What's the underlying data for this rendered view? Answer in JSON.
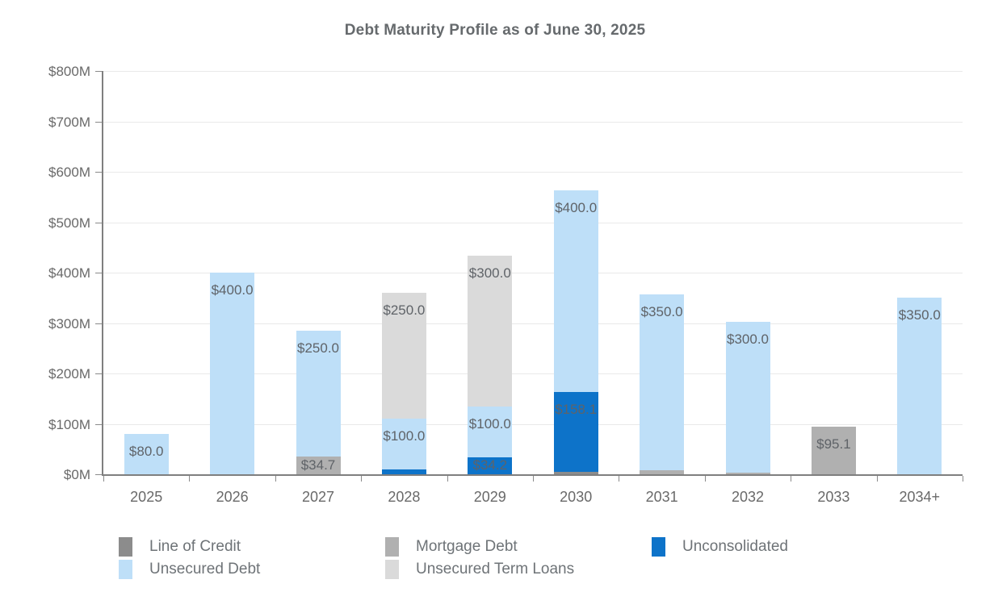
{
  "title": "Debt Maturity Profile as of June 30, 2025",
  "chart_data": {
    "type": "bar",
    "stacked": true,
    "title": "Debt Maturity Profile as of June 30, 2025",
    "categories": [
      "2025",
      "2026",
      "2027",
      "2028",
      "2029",
      "2030",
      "2031",
      "2032",
      "2033",
      "2034+"
    ],
    "unit": "millions USD",
    "ylim": [
      0,
      800
    ],
    "ytick_step": 100,
    "ytick_labels": [
      "$0M",
      "$100M",
      "$200M",
      "$300M",
      "$400M",
      "$500M",
      "$600M",
      "$700M",
      "$800M"
    ],
    "grid": "horizontal",
    "data_labels": true,
    "label_prefix": "$",
    "legend_position": "bottom",
    "series": [
      {
        "name": "Line of Credit",
        "color": "#8c8c8c",
        "values": [
          0,
          0,
          0,
          0,
          0,
          5.2,
          0,
          0,
          0,
          0
        ]
      },
      {
        "name": "Mortgage Debt",
        "color": "#b0b0b0",
        "values": [
          0,
          0,
          34.7,
          0,
          0,
          0,
          7.4,
          3.1,
          95.1,
          0
        ]
      },
      {
        "name": "Unconsolidated",
        "color": "#0d73c9",
        "values": [
          0,
          0,
          0,
          10.4,
          34.2,
          158.1,
          0,
          0,
          0,
          0
        ]
      },
      {
        "name": "Unsecured Debt",
        "color": "#bedff8",
        "values": [
          80.0,
          400.0,
          250.0,
          100.0,
          100.0,
          400.0,
          350.0,
          300.0,
          0,
          350.0
        ]
      },
      {
        "name": "Unsecured Term Loans",
        "color": "#dadada",
        "values": [
          0,
          0,
          0,
          250.0,
          300.0,
          0,
          0,
          0,
          0,
          0
        ]
      }
    ]
  },
  "legend": {
    "columns": [
      [
        "Line of Credit",
        "Unsecured Debt"
      ],
      [
        "Mortgage Debt",
        "Unsecured Term Loans"
      ],
      [
        "Unconsolidated"
      ]
    ]
  }
}
